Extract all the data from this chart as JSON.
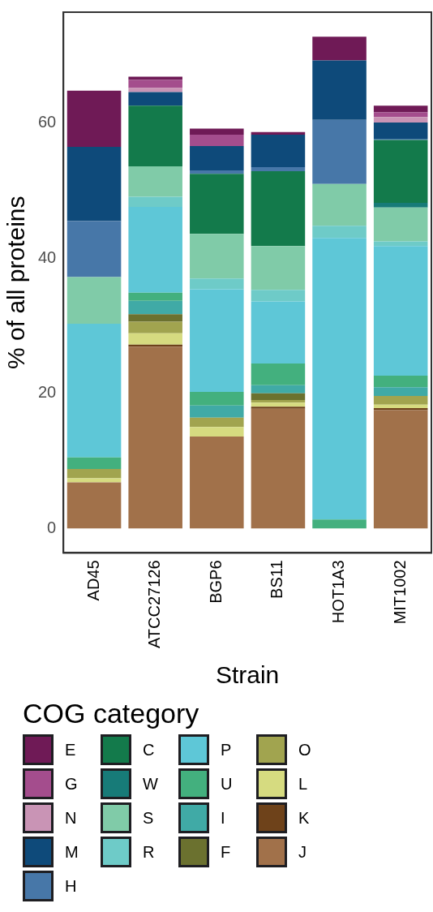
{
  "chart_data": {
    "type": "bar",
    "stacked": true,
    "xlabel": "Strain",
    "ylabel": "% of all proteins",
    "legend_title": "COG category",
    "legend": "bottom",
    "grid": false,
    "categories": [
      "AD45",
      "ATCC27126",
      "BGP6",
      "BS11",
      "HOT1A3",
      "MIT1002"
    ],
    "ylim": [
      -3.64,
      76.44
    ],
    "yticks": [
      0,
      20,
      40,
      60
    ],
    "series": [
      {
        "name": "J",
        "color": "#a1714a",
        "values": [
          6.8,
          26.9,
          13.6,
          17.7,
          0,
          17.5
        ]
      },
      {
        "name": "K",
        "color": "#6e421a",
        "values": [
          0,
          0.3,
          0,
          0.3,
          0,
          0.3
        ]
      },
      {
        "name": "L",
        "color": "#d6db80",
        "values": [
          0.6,
          1.7,
          1.4,
          0.6,
          0,
          0.5
        ]
      },
      {
        "name": "O",
        "color": "#a1a44f",
        "values": [
          1.4,
          1.7,
          1.4,
          0.4,
          0,
          1.3
        ]
      },
      {
        "name": "F",
        "color": "#6b712f",
        "values": [
          0,
          1.1,
          0,
          1.0,
          0,
          0
        ]
      },
      {
        "name": "I",
        "color": "#40aaa6",
        "values": [
          0,
          2.0,
          1.8,
          1.2,
          0,
          1.3
        ]
      },
      {
        "name": "U",
        "color": "#43b07e",
        "values": [
          1.7,
          1.2,
          2.0,
          3.2,
          1.3,
          1.7
        ]
      },
      {
        "name": "P",
        "color": "#5ec7d7",
        "values": [
          19.8,
          12.7,
          15.2,
          9.2,
          41.7,
          19.2
        ]
      },
      {
        "name": "R",
        "color": "#6ecbc8",
        "values": [
          0,
          1.5,
          1.6,
          1.7,
          1.8,
          0.7
        ]
      },
      {
        "name": "S",
        "color": "#80cba8",
        "values": [
          6.9,
          4.5,
          6.6,
          6.5,
          6.2,
          5.0
        ]
      },
      {
        "name": "W",
        "color": "#177b78",
        "values": [
          0,
          0,
          0,
          0,
          0,
          0.7
        ]
      },
      {
        "name": "C",
        "color": "#137a4b",
        "values": [
          0,
          9.0,
          8.9,
          11.1,
          0,
          9.3
        ]
      },
      {
        "name": "H",
        "color": "#4777a8",
        "values": [
          8.3,
          0,
          0.5,
          0.6,
          9.5,
          0.2
        ]
      },
      {
        "name": "M",
        "color": "#0e4a7a",
        "values": [
          11.0,
          2.0,
          3.6,
          4.8,
          8.8,
          2.4
        ]
      },
      {
        "name": "N",
        "color": "#c994b5",
        "values": [
          0,
          0.6,
          0,
          0,
          0,
          0.8
        ]
      },
      {
        "name": "G",
        "color": "#a44d8d",
        "values": [
          0,
          1.2,
          1.7,
          0,
          0,
          0.7
        ]
      },
      {
        "name": "E",
        "color": "#6f1a56",
        "values": [
          8.3,
          0.5,
          0.9,
          0.4,
          3.5,
          1.0
        ]
      }
    ]
  }
}
